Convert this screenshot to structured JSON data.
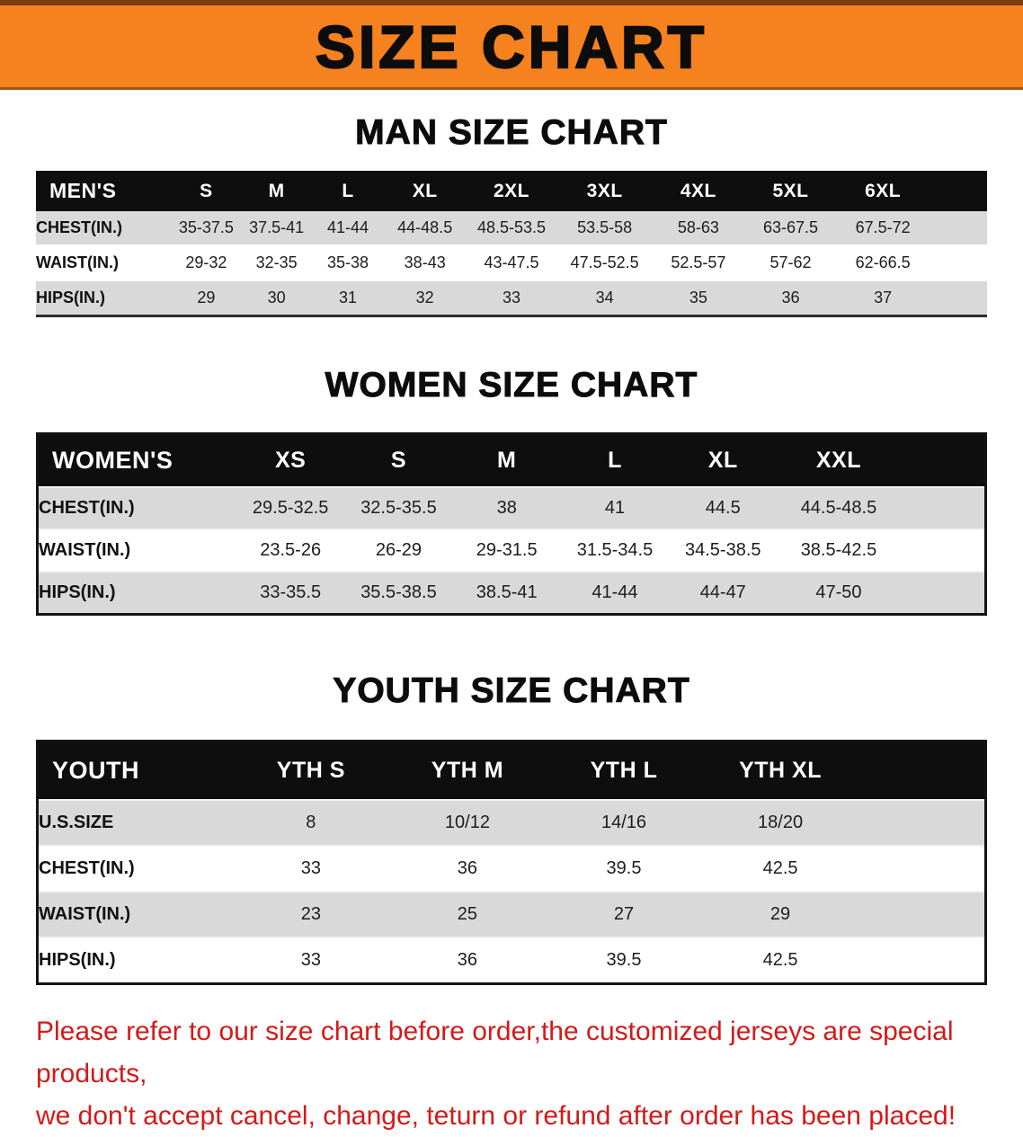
{
  "banner": {
    "title": "SIZE CHART",
    "bg_color": "#f5821f"
  },
  "sections": [
    {
      "heading": "MAN SIZE CHART",
      "table": {
        "header": [
          "MEN'S",
          "S",
          "M",
          "L",
          "XL",
          "2XL",
          "3XL",
          "4XL",
          "5XL",
          "6XL"
        ],
        "rows": [
          {
            "label": "CHEST(IN.)",
            "values": [
              "35-37.5",
              "37.5-41",
              "41-44",
              "44-48.5",
              "48.5-53.5",
              "53.5-58",
              "58-63",
              "63-67.5",
              "67.5-72"
            ]
          },
          {
            "label": "WAIST(IN.)",
            "values": [
              "29-32",
              "32-35",
              "35-38",
              "38-43",
              "43-47.5",
              "47.5-52.5",
              "52.5-57",
              "57-62",
              "62-66.5"
            ]
          },
          {
            "label": "HIPS(IN.)",
            "values": [
              "29",
              "30",
              "31",
              "32",
              "33",
              "34",
              "35",
              "36",
              "37"
            ]
          }
        ]
      }
    },
    {
      "heading": "WOMEN SIZE CHART",
      "table": {
        "header": [
          "WOMEN'S",
          "XS",
          "S",
          "M",
          "L",
          "XL",
          "XXL"
        ],
        "rows": [
          {
            "label": "CHEST(IN.)",
            "values": [
              "29.5-32.5",
              "32.5-35.5",
              "38",
              "41",
              "44.5",
              "44.5-48.5"
            ]
          },
          {
            "label": "WAIST(IN.)",
            "values": [
              "23.5-26",
              "26-29",
              "29-31.5",
              "31.5-34.5",
              "34.5-38.5",
              "38.5-42.5"
            ]
          },
          {
            "label": "HIPS(IN.)",
            "values": [
              "33-35.5",
              "35.5-38.5",
              "38.5-41",
              "41-44",
              "44-47",
              "47-50"
            ]
          }
        ]
      }
    },
    {
      "heading": "YOUTH SIZE CHART",
      "table": {
        "header": [
          "YOUTH",
          "YTH S",
          "YTH M",
          "YTH L",
          "YTH XL"
        ],
        "rows": [
          {
            "label": "U.S.SIZE",
            "values": [
              "8",
              "10/12",
              "14/16",
              "18/20"
            ]
          },
          {
            "label": "CHEST(IN.)",
            "values": [
              "33",
              "36",
              "39.5",
              "42.5"
            ]
          },
          {
            "label": "WAIST(IN.)",
            "values": [
              "23",
              "25",
              "27",
              "29"
            ]
          },
          {
            "label": "HIPS(IN.)",
            "values": [
              "33",
              "36",
              "39.5",
              "42.5"
            ]
          }
        ]
      }
    }
  ],
  "footer": {
    "line1": "Please refer to our size chart before order,the customized jerseys are special products,",
    "line2": "we don't accept cancel, change, teturn or refund after order has been placed!",
    "color": "#d31a1a"
  }
}
